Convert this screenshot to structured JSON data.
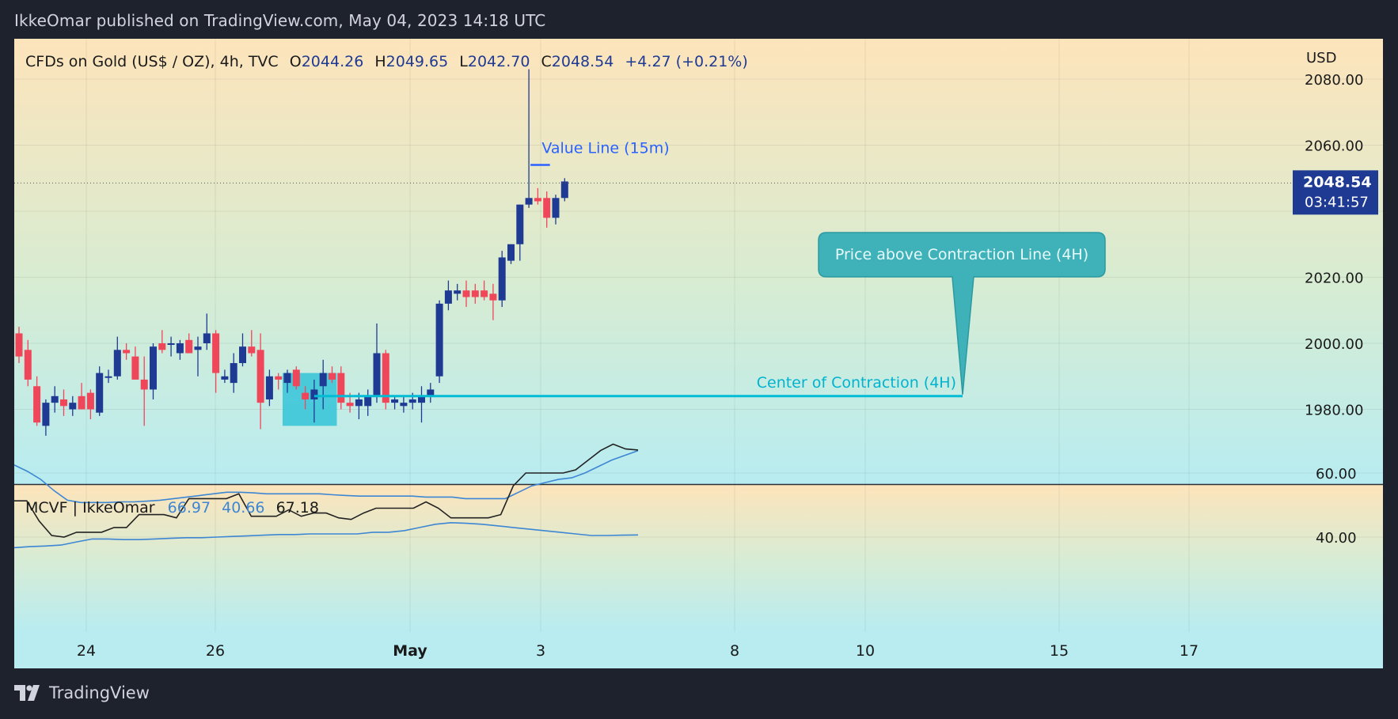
{
  "header": {
    "published_line": "IkkeOmar published on TradingView.com, May 04, 2023 14:18 UTC"
  },
  "legend": {
    "symbol": "CFDs on Gold (US$ / OZ), 4h, TVC",
    "open_label": "O",
    "open": "2044.26",
    "high_label": "H",
    "high": "2049.65",
    "low_label": "L",
    "low": "2042.70",
    "close_label": "C",
    "close": "2048.54",
    "change": "+4.27 (+0.21%)"
  },
  "price_axis": {
    "currency": "USD",
    "labels": [
      "2080.00",
      "2060.00",
      "2020.00",
      "2000.00",
      "1980.00"
    ],
    "last_price": "2048.54",
    "countdown": "03:41:57"
  },
  "annotations": {
    "value_line": "Value Line (15m)",
    "callout": "Price above Contraction Line (4H)",
    "center_line": "Center of Contraction (4H)"
  },
  "indicator": {
    "name": "MCVF | IkkeOmar",
    "values": [
      "66.97",
      "40.66",
      "67.18"
    ],
    "axis_labels": [
      "60.00",
      "40.00"
    ]
  },
  "time_axis": {
    "labels": [
      "24",
      "26",
      "May",
      "3",
      "8",
      "10",
      "15",
      "17"
    ]
  },
  "footer": {
    "brand": "TradingView"
  },
  "colors": {
    "up": "#1f3a93",
    "down": "#f0465a",
    "center_line": "#00bcd4",
    "callout_fill": "#3fb1b8",
    "value_line": "#2962ff",
    "indicator_black": "#222222",
    "indicator_blue": "#3d86d4",
    "frame_bg": "#1e222d"
  },
  "chart_data": {
    "type": "candlestick",
    "symbol": "CFDs on Gold (US$ / OZ)",
    "interval": "4h",
    "yrange": [
      1960,
      2085
    ],
    "candles": [
      {
        "o": 2003,
        "h": 2005,
        "l": 1994,
        "c": 1996
      },
      {
        "o": 1998,
        "h": 2001,
        "l": 1987,
        "c": 1989
      },
      {
        "o": 1987,
        "h": 1990,
        "l": 1975,
        "c": 1976
      },
      {
        "o": 1975,
        "h": 1983,
        "l": 1972,
        "c": 1982
      },
      {
        "o": 1982,
        "h": 1987,
        "l": 1979,
        "c": 1984
      },
      {
        "o": 1983,
        "h": 1986,
        "l": 1978,
        "c": 1981
      },
      {
        "o": 1980,
        "h": 1984,
        "l": 1978,
        "c": 1982
      },
      {
        "o": 1984,
        "h": 1988,
        "l": 1980,
        "c": 1980
      },
      {
        "o": 1985,
        "h": 1986,
        "l": 1977,
        "c": 1980
      },
      {
        "o": 1979,
        "h": 1993,
        "l": 1978,
        "c": 1991
      },
      {
        "o": 1990,
        "h": 1992,
        "l": 1988,
        "c": 1990
      },
      {
        "o": 1990,
        "h": 2002,
        "l": 1989,
        "c": 1998
      },
      {
        "o": 1998,
        "h": 2000,
        "l": 1995,
        "c": 1997
      },
      {
        "o": 1996,
        "h": 1999,
        "l": 1990,
        "c": 1989
      },
      {
        "o": 1989,
        "h": 1996,
        "l": 1975,
        "c": 1986
      },
      {
        "o": 1986,
        "h": 2000,
        "l": 1983,
        "c": 1999
      },
      {
        "o": 2000,
        "h": 2004,
        "l": 1997,
        "c": 1998
      },
      {
        "o": 2000,
        "h": 2002,
        "l": 1996,
        "c": 2000
      },
      {
        "o": 1997,
        "h": 2001,
        "l": 1995,
        "c": 2000
      },
      {
        "o": 2001,
        "h": 2003,
        "l": 1997,
        "c": 1997
      },
      {
        "o": 1998,
        "h": 2002,
        "l": 1990,
        "c": 1999
      },
      {
        "o": 2000,
        "h": 2009,
        "l": 1998,
        "c": 2003
      },
      {
        "o": 2003,
        "h": 2004,
        "l": 1985,
        "c": 1991
      },
      {
        "o": 1989,
        "h": 1992,
        "l": 1988,
        "c": 1990
      },
      {
        "o": 1988,
        "h": 1997,
        "l": 1985,
        "c": 1994
      },
      {
        "o": 1994,
        "h": 2003,
        "l": 1993,
        "c": 1999
      },
      {
        "o": 1999,
        "h": 2004,
        "l": 1996,
        "c": 1997
      },
      {
        "o": 1998,
        "h": 2003,
        "l": 1974,
        "c": 1982
      },
      {
        "o": 1983,
        "h": 1992,
        "l": 1981,
        "c": 1990
      },
      {
        "o": 1990,
        "h": 1991,
        "l": 1986,
        "c": 1989
      },
      {
        "o": 1988,
        "h": 1992,
        "l": 1985,
        "c": 1991
      },
      {
        "o": 1992,
        "h": 1993,
        "l": 1986,
        "c": 1987
      },
      {
        "o": 1985,
        "h": 1987,
        "l": 1980,
        "c": 1983
      },
      {
        "o": 1983,
        "h": 1989,
        "l": 1976,
        "c": 1986
      },
      {
        "o": 1987,
        "h": 1995,
        "l": 1980,
        "c": 1991
      },
      {
        "o": 1991,
        "h": 1993,
        "l": 1988,
        "c": 1989
      },
      {
        "o": 1991,
        "h": 1993,
        "l": 1980,
        "c": 1982
      },
      {
        "o": 1982,
        "h": 1985,
        "l": 1979,
        "c": 1981
      },
      {
        "o": 1981,
        "h": 1985,
        "l": 1977,
        "c": 1983
      },
      {
        "o": 1981,
        "h": 1986,
        "l": 1978,
        "c": 1984
      },
      {
        "o": 1984,
        "h": 2006,
        "l": 1982,
        "c": 1997
      },
      {
        "o": 1997,
        "h": 1998,
        "l": 1980,
        "c": 1982
      },
      {
        "o": 1982,
        "h": 1984,
        "l": 1980,
        "c": 1983
      },
      {
        "o": 1981,
        "h": 1984,
        "l": 1979,
        "c": 1982
      },
      {
        "o": 1982,
        "h": 1985,
        "l": 1980,
        "c": 1983
      },
      {
        "o": 1982,
        "h": 1987,
        "l": 1976,
        "c": 1984
      },
      {
        "o": 1984,
        "h": 1988,
        "l": 1982,
        "c": 1986
      },
      {
        "o": 1990,
        "h": 2013,
        "l": 1988,
        "c": 2012
      },
      {
        "o": 2012,
        "h": 2019,
        "l": 2010,
        "c": 2016
      },
      {
        "o": 2015,
        "h": 2018,
        "l": 2013,
        "c": 2016
      },
      {
        "o": 2016,
        "h": 2019,
        "l": 2011,
        "c": 2014
      },
      {
        "o": 2016,
        "h": 2018,
        "l": 2012,
        "c": 2014
      },
      {
        "o": 2016,
        "h": 2019,
        "l": 2013,
        "c": 2014
      },
      {
        "o": 2015,
        "h": 2018,
        "l": 2007,
        "c": 2013
      },
      {
        "o": 2013,
        "h": 2028,
        "l": 2011,
        "c": 2026
      },
      {
        "o": 2025,
        "h": 2030,
        "l": 2024,
        "c": 2030
      },
      {
        "o": 2030,
        "h": 2042,
        "l": 2025,
        "c": 2042
      },
      {
        "o": 2042,
        "h": 2083,
        "l": 2041,
        "c": 2044
      },
      {
        "o": 2044,
        "h": 2047,
        "l": 2042,
        "c": 2043
      },
      {
        "o": 2044,
        "h": 2046,
        "l": 2035,
        "c": 2038
      },
      {
        "o": 2038,
        "h": 2045,
        "l": 2036,
        "c": 2044
      },
      {
        "o": 2044,
        "h": 2050,
        "l": 2043,
        "c": 2049
      }
    ],
    "contraction_box": {
      "from_index": 30,
      "to_index": 35,
      "low": 1975,
      "high": 1991
    },
    "value_line": {
      "price": 2054,
      "from_index": 57,
      "to_index": 59
    },
    "center_of_contraction": {
      "price": 1984,
      "from_index": 33,
      "to_date": "12"
    },
    "indicator": {
      "name": "MCVF | IkkeOmar",
      "yrange": [
        31,
        77
      ],
      "series": [
        {
          "values": [
            62.5,
            60.5,
            58,
            54.5,
            51.5,
            50.8,
            50.8,
            50.8,
            51,
            51,
            51.2,
            51.5,
            52,
            52.5,
            53,
            53.5,
            54,
            54,
            53.8,
            53.5,
            53.5,
            53.5,
            53.5,
            53.5,
            53.2,
            53,
            52.8,
            52.8,
            52.8,
            52.8,
            52.8,
            52.5,
            52.5,
            52.5,
            52,
            52,
            52,
            52,
            54,
            56,
            57,
            58,
            58.5,
            60,
            62,
            64,
            65.5,
            66.97
          ]
        },
        {
          "values": [
            51.3,
            51.3,
            45,
            40.5,
            40,
            41.5,
            41.5,
            41.5,
            43,
            43,
            47,
            47,
            47,
            46,
            52,
            52,
            52,
            52,
            53.5,
            46.5,
            46.5,
            46.5,
            48.5,
            46.5,
            47.5,
            47.5,
            46,
            45.5,
            47.5,
            49,
            49,
            49,
            49,
            51,
            49,
            46,
            46,
            46,
            46,
            47,
            56,
            60,
            60,
            60,
            60,
            61,
            64,
            67,
            69,
            67.5,
            67.18
          ]
        },
        {
          "values": [
            36.7,
            37,
            37.2,
            37.5,
            38.5,
            39.4,
            39.4,
            39.2,
            39.2,
            39.4,
            39.6,
            39.8,
            39.8,
            40,
            40.2,
            40.4,
            40.6,
            40.8,
            40.8,
            41,
            41,
            41,
            41,
            41.5,
            41.5,
            42,
            43,
            44,
            44.5,
            44.3,
            44,
            43.5,
            43,
            42.5,
            42,
            41.5,
            41,
            40.5,
            40.5,
            40.6,
            40.66
          ]
        }
      ]
    },
    "price_axis_labels": [
      "2080.00",
      "2060.00",
      "2020.00",
      "2000.00",
      "1980.00"
    ],
    "time_axis_labels": [
      "24",
      "26",
      "May",
      "3",
      "8",
      "10",
      "15",
      "17"
    ]
  }
}
